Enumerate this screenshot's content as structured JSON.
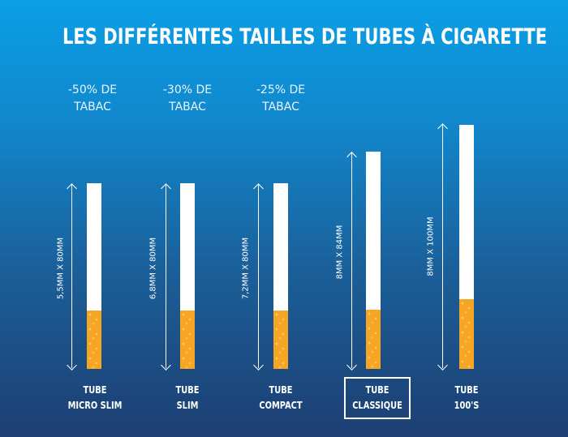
{
  "title": "LES DIFFÉRENTES TAILLES DE TUBES À CIGARETTE",
  "tubes": [
    {
      "reduction_line1": "-50% DE",
      "reduction_line2": "TABAC",
      "dimension": "5,5MM X 80MM",
      "name_line1": "TUBE",
      "name_line2": "MICRO SLIM",
      "highlighted": false
    },
    {
      "reduction_line1": "-30% DE",
      "reduction_line2": "TABAC",
      "dimension": "6,8MM X 80MM",
      "name_line1": "TUBE",
      "name_line2": "SLIM",
      "highlighted": false
    },
    {
      "reduction_line1": "-25% DE",
      "reduction_line2": "TABAC",
      "dimension": "7,2MM X 80MM",
      "name_line1": "TUBE",
      "name_line2": "COMPACT",
      "highlighted": false
    },
    {
      "reduction_line1": "",
      "reduction_line2": "",
      "dimension": "8MM X 84MM",
      "name_line1": "TUBE",
      "name_line2": "CLASSIQUE",
      "highlighted": true
    },
    {
      "reduction_line1": "",
      "reduction_line2": "",
      "dimension": "8MM X 100MM",
      "name_line1": "TUBE",
      "name_line2": "100'S",
      "highlighted": false
    }
  ],
  "colors": {
    "background_top": "#0a9fe6",
    "background_bottom": "#1d3f72",
    "filter": "#f6a623",
    "paper": "#ffffff"
  }
}
